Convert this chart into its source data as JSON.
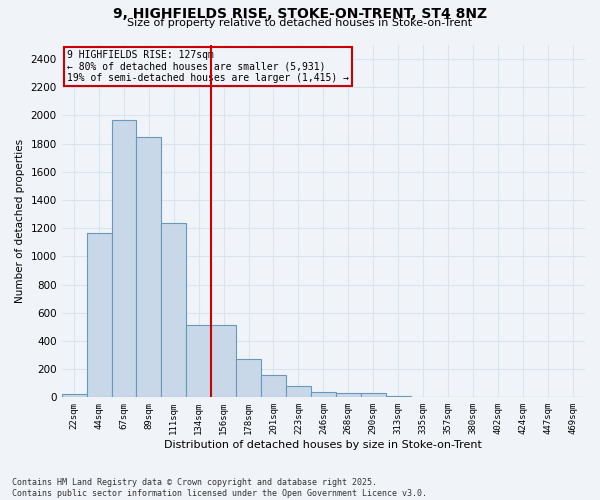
{
  "title_line1": "9, HIGHFIELDS RISE, STOKE-ON-TRENT, ST4 8NZ",
  "title_line2": "Size of property relative to detached houses in Stoke-on-Trent",
  "xlabel": "Distribution of detached houses by size in Stoke-on-Trent",
  "ylabel": "Number of detached properties",
  "categories": [
    "22sqm",
    "44sqm",
    "67sqm",
    "89sqm",
    "111sqm",
    "134sqm",
    "156sqm",
    "178sqm",
    "201sqm",
    "223sqm",
    "246sqm",
    "268sqm",
    "290sqm",
    "313sqm",
    "335sqm",
    "357sqm",
    "380sqm",
    "402sqm",
    "424sqm",
    "447sqm",
    "469sqm"
  ],
  "values": [
    22,
    1165,
    1965,
    1850,
    1240,
    510,
    510,
    270,
    155,
    80,
    40,
    30,
    28,
    12,
    5,
    3,
    2,
    2,
    1,
    1,
    1
  ],
  "bar_color": "#c8d8e8",
  "bar_edge_color": "#6699bb",
  "vline_color": "#cc0000",
  "vline_pos": 5.5,
  "annotation_title": "9 HIGHFIELDS RISE: 127sqm",
  "annotation_line1": "← 80% of detached houses are smaller (5,931)",
  "annotation_line2": "19% of semi-detached houses are larger (1,415) →",
  "annotation_box_color": "#cc0000",
  "ylim": [
    0,
    2500
  ],
  "yticks": [
    0,
    200,
    400,
    600,
    800,
    1000,
    1200,
    1400,
    1600,
    1800,
    2000,
    2200,
    2400
  ],
  "bg_color": "#f0f4f8",
  "grid_color": "#d8e4f0",
  "footer_line1": "Contains HM Land Registry data © Crown copyright and database right 2025.",
  "footer_line2": "Contains public sector information licensed under the Open Government Licence v3.0."
}
